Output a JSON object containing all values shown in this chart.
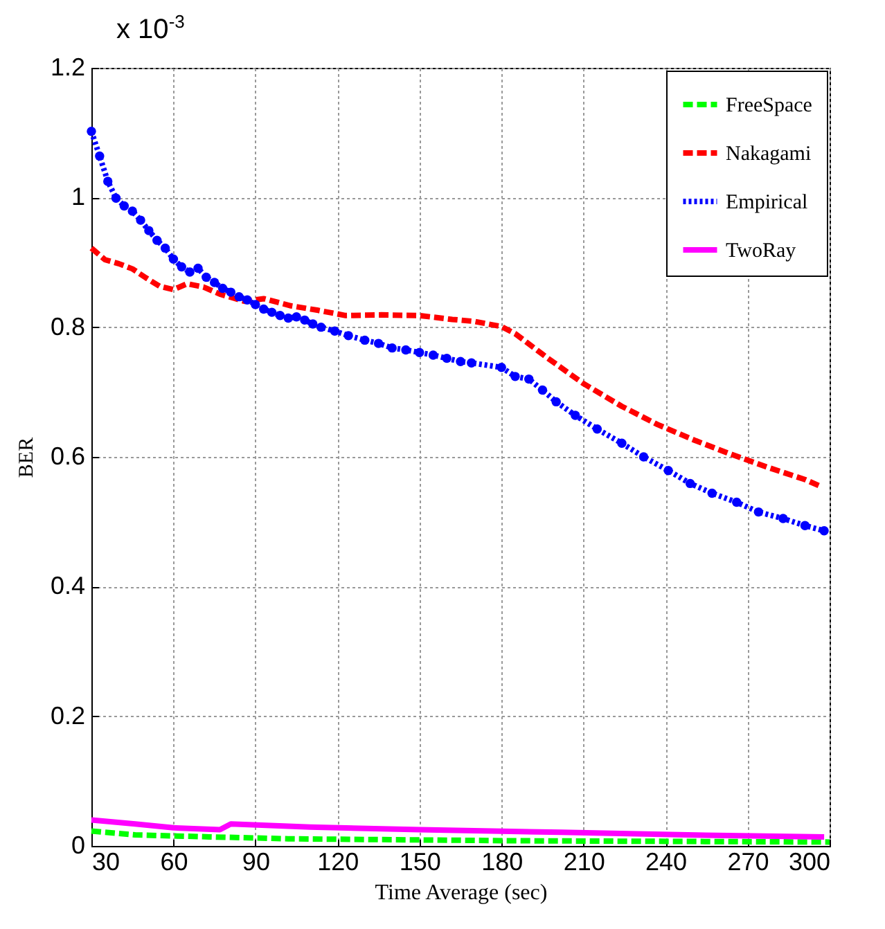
{
  "chart_data": {
    "type": "line",
    "xlabel": "Time Average (sec)",
    "ylabel": "BER",
    "annotations": [
      "x 10$^{-3}$"
    ],
    "xlim": [
      30,
      300
    ],
    "xticks": [
      30,
      60,
      90,
      120,
      150,
      180,
      210,
      240,
      270,
      300
    ],
    "ylim": [
      0,
      1.2
    ],
    "yticks": [
      0,
      0.2,
      0.4,
      0.6,
      0.8,
      1,
      1.2
    ],
    "grid": true,
    "legend": "top right",
    "series": [
      {
        "name": "FreeSpace",
        "color": "#00ff00",
        "line_style": "dashed",
        "marker": "none",
        "x": [
          30,
          46,
          73,
          102,
          184,
          300
        ],
        "values": [
          0.023,
          0.017,
          0.014,
          0.011,
          0.008,
          0.006
        ]
      },
      {
        "name": "Nakagami",
        "color": "#ff0000",
        "line_style": "dashed",
        "marker": "none",
        "x": [
          30,
          35,
          40,
          45,
          50,
          55,
          60,
          65,
          71,
          77,
          86,
          93,
          103,
          113,
          123,
          136,
          150,
          162,
          170,
          180,
          185,
          197,
          210,
          224,
          237,
          251,
          264,
          278,
          291,
          297
        ],
        "values": [
          0.922,
          0.904,
          0.898,
          0.89,
          0.876,
          0.863,
          0.858,
          0.867,
          0.862,
          0.851,
          0.84,
          0.844,
          0.833,
          0.826,
          0.818,
          0.819,
          0.818,
          0.812,
          0.809,
          0.801,
          0.79,
          0.752,
          0.713,
          0.678,
          0.65,
          0.625,
          0.604,
          0.583,
          0.565,
          0.554
        ]
      },
      {
        "name": "Empirical",
        "color": "#0000ff",
        "line_style": "dotted",
        "marker": "circle",
        "x": [
          30,
          33,
          36,
          39,
          42,
          45,
          48,
          51,
          54,
          57,
          60,
          63,
          66,
          69,
          72,
          75,
          78,
          81,
          84,
          87,
          90,
          93,
          96,
          99,
          102,
          105,
          108,
          111,
          114,
          119,
          124,
          130,
          135,
          140,
          145,
          150,
          155,
          160,
          165,
          169,
          180,
          185,
          190,
          195,
          200,
          207,
          215,
          224,
          232,
          241,
          249,
          257,
          266,
          274,
          283,
          291,
          298
        ],
        "values": [
          1.102,
          1.064,
          1.025,
          0.999,
          0.987,
          0.979,
          0.965,
          0.949,
          0.934,
          0.922,
          0.905,
          0.893,
          0.885,
          0.891,
          0.877,
          0.869,
          0.86,
          0.854,
          0.847,
          0.842,
          0.835,
          0.828,
          0.823,
          0.818,
          0.814,
          0.816,
          0.811,
          0.805,
          0.8,
          0.794,
          0.787,
          0.78,
          0.775,
          0.768,
          0.765,
          0.761,
          0.757,
          0.752,
          0.747,
          0.745,
          0.738,
          0.724,
          0.72,
          0.703,
          0.685,
          0.664,
          0.643,
          0.621,
          0.6,
          0.579,
          0.559,
          0.544,
          0.53,
          0.515,
          0.505,
          0.494,
          0.486
        ]
      },
      {
        "name": "TwoRay",
        "color": "#ff00ff",
        "line_style": "solid",
        "marker": "none",
        "x": [
          30,
          46,
          60,
          77,
          81,
          110,
          150,
          202,
          248,
          298
        ],
        "values": [
          0.04,
          0.034,
          0.028,
          0.025,
          0.034,
          0.029,
          0.025,
          0.021,
          0.017,
          0.014
        ]
      }
    ]
  }
}
